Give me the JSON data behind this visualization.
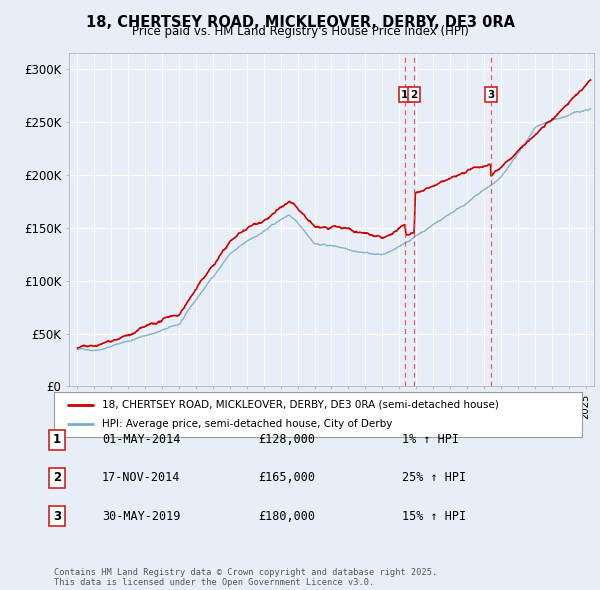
{
  "title": "18, CHERTSEY ROAD, MICKLEOVER, DERBY, DE3 0RA",
  "subtitle": "Price paid vs. HM Land Registry's House Price Index (HPI)",
  "xlim_start": 1994.5,
  "xlim_end": 2025.5,
  "ylim": [
    0,
    315000
  ],
  "yticks": [
    0,
    50000,
    100000,
    150000,
    200000,
    250000,
    300000
  ],
  "ytick_labels": [
    "£0",
    "£50K",
    "£100K",
    "£150K",
    "£200K",
    "£250K",
    "£300K"
  ],
  "background_color": "#e8eef8",
  "plot_bg_color": "#e8eef8",
  "grid_color": "#ffffff",
  "red_line_color": "#cc0000",
  "blue_line_color": "#7aaccc",
  "transaction_line_color": "#ee4444",
  "transactions": [
    {
      "year": 2014.33,
      "price": 128000,
      "label": "1",
      "date": "01-MAY-2014",
      "pct": "1%"
    },
    {
      "year": 2014.88,
      "price": 165000,
      "label": "2",
      "date": "17-NOV-2014",
      "pct": "25%"
    },
    {
      "year": 2019.41,
      "price": 180000,
      "label": "3",
      "date": "30-MAY-2019",
      "pct": "15%"
    }
  ],
  "legend_line1": "18, CHERTSEY ROAD, MICKLEOVER, DERBY, DE3 0RA (semi-detached house)",
  "legend_line2": "HPI: Average price, semi-detached house, City of Derby",
  "footer": "Contains HM Land Registry data © Crown copyright and database right 2025.\nThis data is licensed under the Open Government Licence v3.0."
}
